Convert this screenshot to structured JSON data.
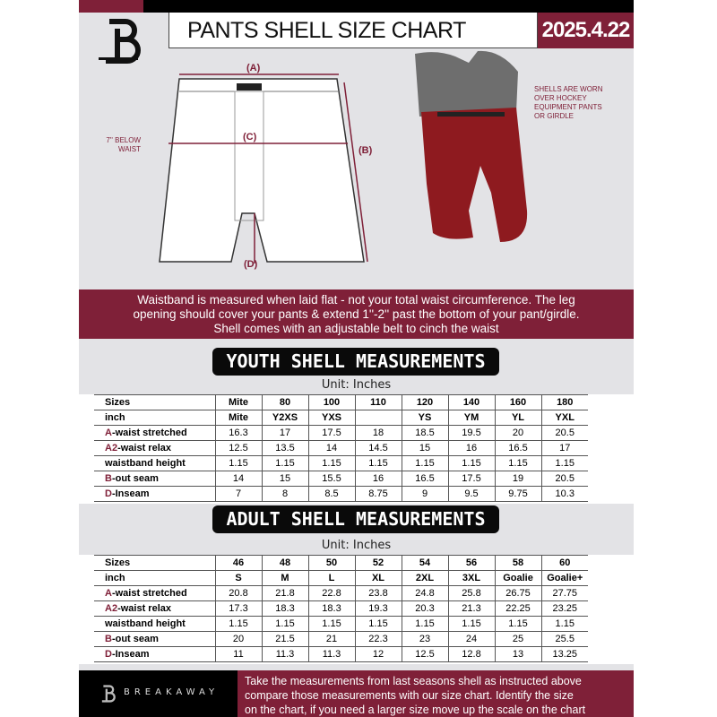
{
  "header": {
    "title": "PANTS SHELL SIZE CHART",
    "date": "2025.4.22",
    "logo_text": "B"
  },
  "diagram": {
    "label_a": "(A)",
    "label_b": "(B)",
    "label_c": "(C)",
    "label_d": "(D)",
    "waist_note": [
      "7'' BELOW",
      "WAIST"
    ],
    "shell_note": [
      "SHELLS ARE WORN",
      "OVER HOCKEY",
      "EQUIPMENT PANTS",
      "OR GIRDLE"
    ]
  },
  "info_band": [
    "Waistband is measured when laid flat - not your total waist circumference. The leg",
    "opening should cover your pants & extend 1''-2'' past the bottom of your pant/girdle.",
    "Shell comes with an adjustable belt to cinch the waist"
  ],
  "youth": {
    "heading": "YOUTH SHELL MEASUREMENTS",
    "unit": "Unit: Inches",
    "rows": [
      {
        "prefix": "",
        "label": "Sizes",
        "values": [
          "Mite",
          "80",
          "100",
          "110",
          "120",
          "140",
          "160",
          "180"
        ]
      },
      {
        "prefix": "",
        "label": "inch",
        "values": [
          "Mite",
          "Y2XS",
          "YXS",
          "",
          "YS",
          "YM",
          "YL",
          "YXL"
        ]
      },
      {
        "prefix": "A",
        "label": "-waist stretched",
        "values": [
          "16.3",
          "17",
          "17.5",
          "18",
          "18.5",
          "19.5",
          "20",
          "20.5"
        ]
      },
      {
        "prefix": "A2",
        "label": "-waist relax",
        "values": [
          "12.5",
          "13.5",
          "14",
          "14.5",
          "15",
          "16",
          "16.5",
          "17"
        ]
      },
      {
        "prefix": "",
        "label": "waistband height",
        "values": [
          "1.15",
          "1.15",
          "1.15",
          "1.15",
          "1.15",
          "1.15",
          "1.15",
          "1.15"
        ]
      },
      {
        "prefix": "B",
        "label": "-out seam",
        "values": [
          "14",
          "15",
          "15.5",
          "16",
          "16.5",
          "17.5",
          "19",
          "20.5"
        ]
      },
      {
        "prefix": "D",
        "label": "-Inseam",
        "values": [
          "7",
          "8",
          "8.5",
          "8.75",
          "9",
          "9.5",
          "9.75",
          "10.3"
        ]
      }
    ]
  },
  "adult": {
    "heading": "ADULT SHELL MEASUREMENTS",
    "unit": "Unit: Inches",
    "rows": [
      {
        "prefix": "",
        "label": "Sizes",
        "values": [
          "46",
          "48",
          "50",
          "52",
          "54",
          "56",
          "58",
          "60"
        ]
      },
      {
        "prefix": "",
        "label": "inch",
        "values": [
          "S",
          "M",
          "L",
          "XL",
          "2XL",
          "3XL",
          "Goalie",
          "Goalie+"
        ]
      },
      {
        "prefix": "A",
        "label": "-waist stretched",
        "values": [
          "20.8",
          "21.8",
          "22.8",
          "23.8",
          "24.8",
          "25.8",
          "26.75",
          "27.75"
        ]
      },
      {
        "prefix": "A2",
        "label": "-waist relax",
        "values": [
          "17.3",
          "18.3",
          "18.3",
          "19.3",
          "20.3",
          "21.3",
          "22.25",
          "23.25"
        ]
      },
      {
        "prefix": "",
        "label": "waistband height",
        "values": [
          "1.15",
          "1.15",
          "1.15",
          "1.15",
          "1.15",
          "1.15",
          "1.15",
          "1.15"
        ]
      },
      {
        "prefix": "B",
        "label": "-out seam",
        "values": [
          "20",
          "21.5",
          "21",
          "22.3",
          "23",
          "24",
          "25",
          "25.5"
        ]
      },
      {
        "prefix": "D",
        "label": "-Inseam",
        "values": [
          "11",
          "11.3",
          "11.3",
          "12",
          "12.5",
          "12.8",
          "13",
          "13.25"
        ]
      }
    ]
  },
  "footer": {
    "brand": "BREAKAWAY",
    "text": [
      "Take the measurements from last seasons shell as instructed above",
      "compare those measurements  with our size chart. Identify the size",
      "on the chart, if you need a larger size move up the scale on the chart"
    ]
  },
  "colors": {
    "accent": "#7f2038",
    "background": "#e3e3e6"
  }
}
